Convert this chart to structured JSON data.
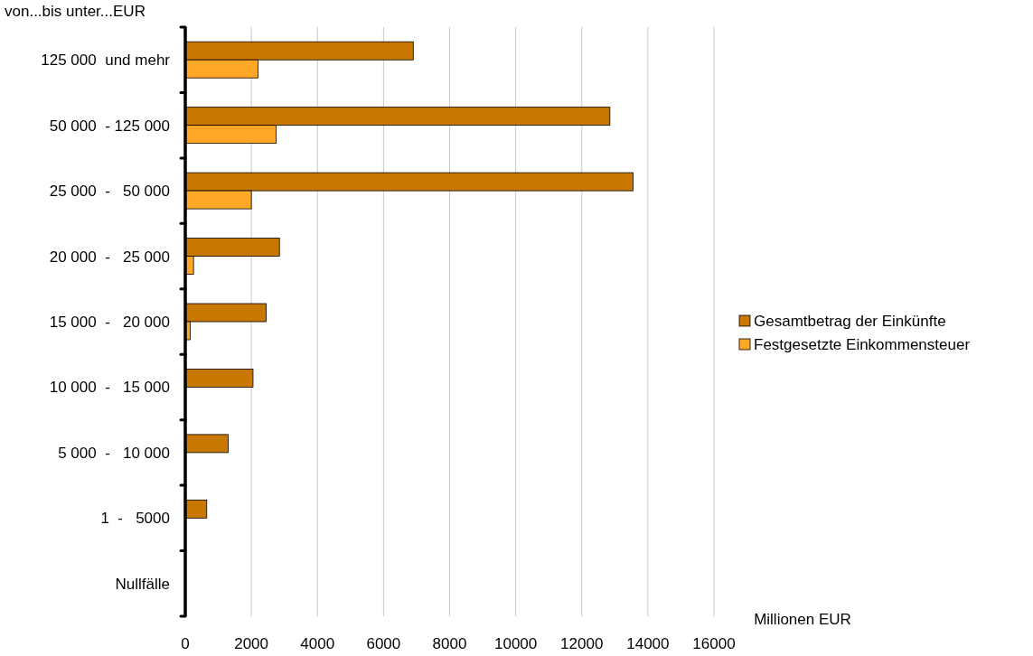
{
  "chart_data": {
    "type": "bar",
    "orientation": "horizontal",
    "xlabel": "Millionen EUR",
    "ylabel": "von...bis unter...EUR",
    "categories": [
      "125 000  und mehr",
      "50 000  - 125 000",
      "25 000  -   50 000",
      "20 000  -   25 000",
      "15 000  -   20 000",
      "10 000  -   15 000",
      "5 000  -   10 000",
      "1  -   5000",
      "Nullfälle"
    ],
    "series": [
      {
        "name": "Gesamtbetrag der Einkünfte",
        "color": "#c87800",
        "values": [
          6900,
          12850,
          13550,
          2850,
          2450,
          2050,
          1300,
          650,
          0
        ]
      },
      {
        "name": "Festgesetzte Einkommensteuer",
        "color": "#ffa726",
        "values": [
          2200,
          2750,
          2000,
          250,
          150,
          null,
          0,
          0,
          0
        ]
      }
    ],
    "xlim": [
      0,
      16000
    ],
    "xticks": [
      0,
      2000,
      4000,
      6000,
      8000,
      10000,
      12000,
      14000,
      16000
    ],
    "grid": "x",
    "legend": "right"
  }
}
